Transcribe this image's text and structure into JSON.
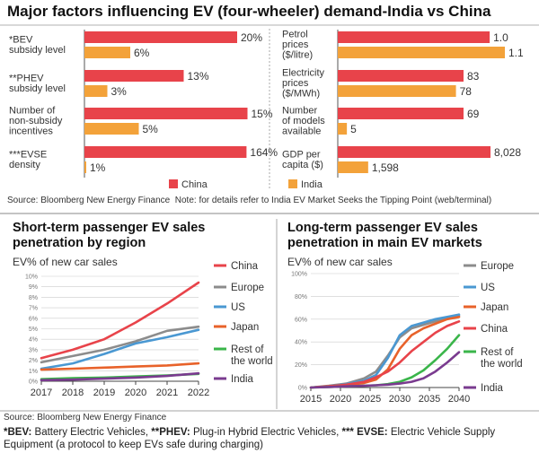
{
  "title": "Major factors influencing EV (four-wheeler) demand-India vs China",
  "top_source": "Source: Bloomberg New Energy Finance",
  "top_note": "Note: for details refer to India EV Market Seeks the Tipping Point (web/terminal)",
  "bottom_source": "Source: Bloomberg New Energy Finance",
  "footnote": {
    "bev_key": "*BEV:",
    "bev_text": " Battery Electric Vehicles, ",
    "phev_key": "**PHEV:",
    "phev_text": " Plug-in Hybrid Electric Vehicles, ",
    "evse_key": "*** EVSE:",
    "evse_text": " Electric Vehicle Supply Equipment (a protocol to keep EVs safe during charging)"
  },
  "colors": {
    "china": "#e8434a",
    "india": "#f3a23a",
    "europe": "#8c8c8c",
    "us": "#4a98d2",
    "japan": "#e8622a",
    "row": "#3ab54a",
    "india_line": "#7a3b8f",
    "grid": "#cccccc"
  },
  "chart_data": [
    {
      "type": "bar",
      "orientation": "horizontal",
      "categories": [
        "*BEV subsidy level",
        "**PHEV subsidy level",
        "Number of non-subsidy incentives",
        "***EVSE density"
      ],
      "category_lines": [
        [
          "*BEV",
          "subsidy level"
        ],
        [
          "**PHEV",
          "subsidy level"
        ],
        [
          "Number of",
          "non-subsidy",
          "incentives"
        ],
        [
          "***EVSE",
          "density"
        ]
      ],
      "series": [
        {
          "name": "China",
          "values": [
            20,
            13,
            15,
            164
          ],
          "labels": [
            "20%",
            "13%",
            "15%",
            "164%"
          ]
        },
        {
          "name": "India",
          "values": [
            6,
            3,
            5,
            1
          ],
          "labels": [
            "6%",
            "3%",
            "5%",
            "1%"
          ]
        }
      ]
    },
    {
      "type": "bar",
      "orientation": "horizontal",
      "categories": [
        "Petrol prices ($/litre)",
        "Electricity prices ($/MWh)",
        "Number of models available",
        "GDP per capita ($)"
      ],
      "category_lines": [
        [
          "Petrol",
          "prices",
          "($/litre)"
        ],
        [
          "Electricity",
          "prices",
          "($/MWh)"
        ],
        [
          "Number",
          "of models",
          "available"
        ],
        [
          "GDP per",
          "capita ($)"
        ]
      ],
      "series": [
        {
          "name": "China",
          "values": [
            1.0,
            83,
            69,
            8028
          ],
          "labels": [
            "1.0",
            "83",
            "69",
            "8,028"
          ]
        },
        {
          "name": "India",
          "values": [
            1.1,
            78,
            5,
            1598
          ],
          "labels": [
            "1.1",
            "78",
            "5",
            "1,598"
          ]
        }
      ],
      "legend": [
        "China",
        "India"
      ]
    },
    {
      "type": "line",
      "title": "Short-term passenger EV sales penetration by region",
      "ylabel": "EV% of new car sales",
      "x": [
        2017,
        2018,
        2019,
        2020,
        2021,
        2022
      ],
      "ylim": [
        0,
        10
      ],
      "yticks": [
        "0%",
        "1%",
        "2%",
        "3%",
        "4%",
        "5%",
        "6%",
        "7%",
        "8%",
        "9%",
        "10%"
      ],
      "series": [
        {
          "name": "China",
          "values": [
            2.2,
            3.0,
            4.0,
            5.6,
            7.4,
            9.4
          ]
        },
        {
          "name": "Europe",
          "values": [
            1.8,
            2.4,
            3.0,
            3.8,
            4.8,
            5.2
          ]
        },
        {
          "name": "US",
          "values": [
            1.2,
            1.7,
            2.6,
            3.6,
            4.2,
            4.9
          ]
        },
        {
          "name": "Japan",
          "values": [
            1.1,
            1.2,
            1.3,
            1.4,
            1.5,
            1.7
          ]
        },
        {
          "name": "Rest of the world",
          "values": [
            0.2,
            0.3,
            0.35,
            0.45,
            0.55,
            0.7
          ]
        },
        {
          "name": "India",
          "values": [
            0.1,
            0.15,
            0.25,
            0.35,
            0.5,
            0.75
          ]
        }
      ],
      "legend_lines": [
        [
          "China"
        ],
        [
          "Europe"
        ],
        [
          "US"
        ],
        [
          "Japan"
        ],
        [
          "Rest of",
          "the world"
        ],
        [
          "India"
        ]
      ]
    },
    {
      "type": "line",
      "title": "Long-term passenger EV sales penetration in main EV markets",
      "ylabel": "EV% of new car sales",
      "x": [
        2015,
        2020,
        2025,
        2030,
        2035,
        2040
      ],
      "ylim": [
        0,
        100
      ],
      "yticks": [
        "0%",
        "20%",
        "40%",
        "60%",
        "80%",
        "100%"
      ],
      "series": [
        {
          "name": "Europe",
          "x": [
            2015,
            2018,
            2021,
            2024,
            2026,
            2028,
            2030,
            2032,
            2034,
            2036,
            2038,
            2040
          ],
          "values": [
            0,
            1.5,
            3.5,
            8,
            14,
            28,
            44,
            52,
            55,
            58,
            61,
            63
          ]
        },
        {
          "name": "US",
          "x": [
            2015,
            2018,
            2021,
            2024,
            2026,
            2028,
            2030,
            2032,
            2034,
            2036,
            2038,
            2040
          ],
          "values": [
            0,
            1,
            3,
            6,
            11,
            26,
            46,
            54,
            57,
            60,
            62,
            64
          ]
        },
        {
          "name": "Japan",
          "x": [
            2015,
            2018,
            2021,
            2024,
            2026,
            2028,
            2030,
            2032,
            2034,
            2036,
            2038,
            2040
          ],
          "values": [
            0,
            1,
            2,
            4,
            7,
            16,
            34,
            46,
            52,
            56,
            60,
            62
          ]
        },
        {
          "name": "China",
          "x": [
            2015,
            2018,
            2021,
            2024,
            2026,
            2028,
            2030,
            2032,
            2034,
            2036,
            2038,
            2040
          ],
          "values": [
            0,
            1,
            2.5,
            5,
            9,
            14,
            22,
            32,
            40,
            48,
            54,
            58
          ]
        },
        {
          "name": "Rest of the world",
          "x": [
            2015,
            2018,
            2021,
            2024,
            2026,
            2028,
            2030,
            2032,
            2034,
            2036,
            2038,
            2040
          ],
          "values": [
            0,
            0.5,
            1,
            1.5,
            2,
            3,
            5,
            9,
            15,
            24,
            34,
            46
          ]
        },
        {
          "name": "India",
          "x": [
            2015,
            2018,
            2021,
            2024,
            2026,
            2028,
            2030,
            2032,
            2034,
            2036,
            2038,
            2040
          ],
          "values": [
            0,
            0.5,
            1,
            1.5,
            2,
            2.5,
            3.5,
            5,
            8,
            14,
            22,
            31
          ]
        }
      ],
      "legend_lines": [
        [
          "Europe"
        ],
        [
          "US"
        ],
        [
          "Japan"
        ],
        [
          "China"
        ],
        [
          "Rest of",
          "the world"
        ],
        [
          "India"
        ]
      ]
    }
  ]
}
